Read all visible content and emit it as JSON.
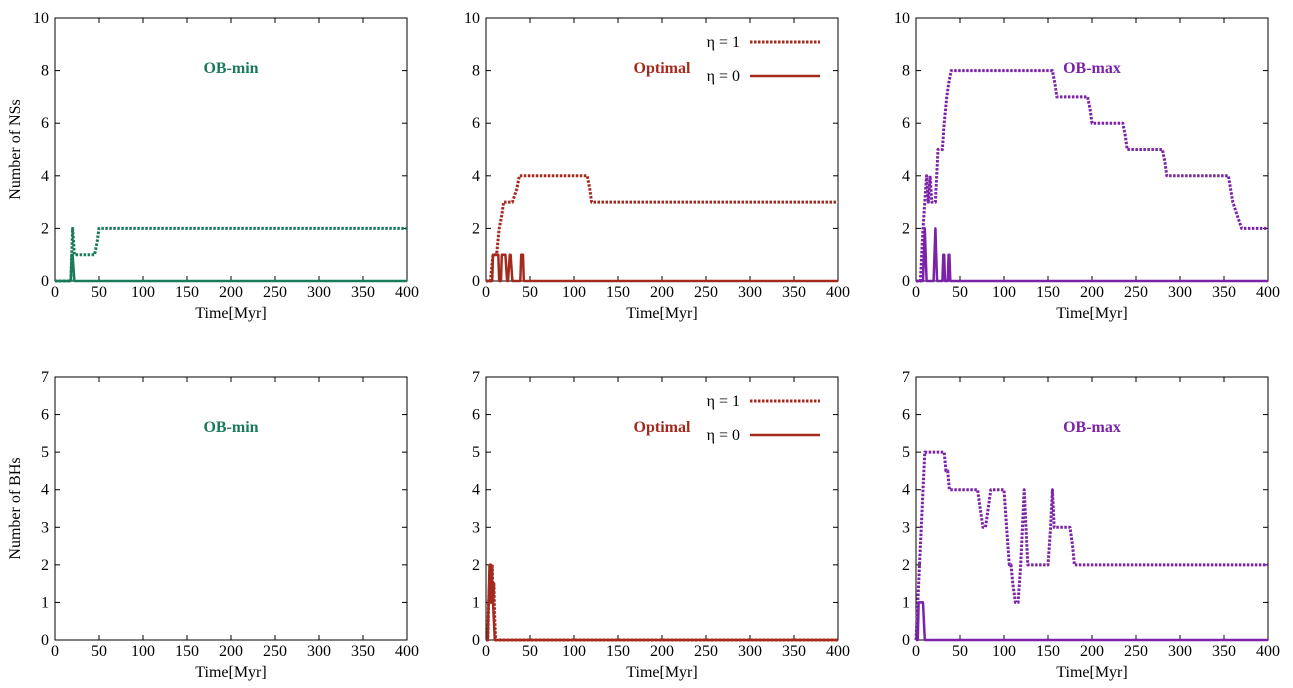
{
  "figure": {
    "xlabel": "Time[Myr]"
  },
  "colors": {
    "OB-min": "#1a7a5c",
    "Optimal": "#a52a1e",
    "OB-max": "#7b22a8"
  },
  "legend": {
    "eta1": "η = 1",
    "eta0": "η = 0"
  },
  "chart_data": [
    {
      "type": "line",
      "row": "NS",
      "title": "OB-min",
      "ylabel": "Number of NSs",
      "xlabel": "Time[Myr]",
      "xlim": [
        0,
        400
      ],
      "ylim": [
        0,
        10
      ],
      "xticks": [
        0,
        50,
        100,
        150,
        200,
        250,
        300,
        350,
        400
      ],
      "yticks": [
        0,
        2,
        4,
        6,
        8,
        10
      ],
      "legend": false,
      "series": [
        {
          "name": "η = 1",
          "style": "dotted",
          "x": [
            0,
            18,
            19,
            20,
            21,
            22,
            24,
            45,
            48,
            50,
            400
          ],
          "y": [
            0,
            0,
            1,
            2,
            1.5,
            1,
            1,
            1,
            1.5,
            2,
            2
          ]
        },
        {
          "name": "η = 0",
          "style": "solid",
          "x": [
            0,
            18,
            19,
            20,
            21,
            22,
            400
          ],
          "y": [
            0,
            0,
            1,
            1,
            0.5,
            0,
            0
          ]
        }
      ]
    },
    {
      "type": "line",
      "row": "NS",
      "title": "Optimal",
      "ylabel": "",
      "xlabel": "Time[Myr]",
      "xlim": [
        0,
        400
      ],
      "ylim": [
        0,
        10
      ],
      "xticks": [
        0,
        50,
        100,
        150,
        200,
        250,
        300,
        350,
        400
      ],
      "yticks": [
        0,
        2,
        4,
        6,
        8,
        10
      ],
      "legend": true,
      "series": [
        {
          "name": "η = 1",
          "style": "dotted",
          "x": [
            0,
            5,
            8,
            12,
            15,
            18,
            20,
            22,
            25,
            30,
            35,
            38,
            40,
            115,
            118,
            120,
            400
          ],
          "y": [
            0,
            0,
            1,
            1,
            2,
            2.5,
            3,
            3,
            3,
            3,
            3.5,
            4,
            4,
            4,
            3.5,
            3,
            3
          ]
        },
        {
          "name": "η = 0",
          "style": "solid",
          "x": [
            0,
            7,
            8,
            10,
            12,
            14,
            15,
            17,
            18,
            20,
            22,
            24,
            25,
            27,
            28,
            30,
            39,
            40,
            42,
            43,
            45,
            55,
            60,
            400
          ],
          "y": [
            0,
            0,
            1,
            1,
            1,
            1,
            0,
            0,
            1,
            1,
            1,
            0,
            0,
            1,
            1,
            0,
            0,
            1,
            1,
            0,
            0,
            0,
            0,
            0
          ]
        }
      ]
    },
    {
      "type": "line",
      "row": "NS",
      "title": "OB-max",
      "ylabel": "",
      "xlabel": "Time[Myr]",
      "xlim": [
        0,
        400
      ],
      "ylim": [
        0,
        10
      ],
      "xticks": [
        0,
        50,
        100,
        150,
        200,
        250,
        300,
        350,
        400
      ],
      "yticks": [
        0,
        2,
        4,
        6,
        8,
        10
      ],
      "legend": false,
      "series": [
        {
          "name": "η = 1",
          "style": "dotted",
          "x": [
            0,
            5,
            8,
            10,
            12,
            14,
            16,
            18,
            20,
            22,
            25,
            28,
            30,
            32,
            35,
            37,
            40,
            45,
            155,
            158,
            160,
            195,
            198,
            200,
            235,
            238,
            240,
            280,
            283,
            285,
            355,
            360,
            365,
            370,
            375,
            380,
            400
          ],
          "y": [
            0,
            0,
            2,
            3,
            4,
            3,
            4,
            3,
            3,
            3,
            5,
            5,
            5,
            6,
            7,
            7.5,
            8,
            8,
            8,
            7.5,
            7,
            7,
            6.5,
            6,
            6,
            5.5,
            5,
            5,
            4.5,
            4,
            4,
            3,
            2.5,
            2,
            2,
            2,
            2
          ]
        },
        {
          "name": "η = 0",
          "style": "solid",
          "x": [
            0,
            8,
            9,
            10,
            11,
            12,
            20,
            21,
            22,
            23,
            24,
            30,
            31,
            32,
            33,
            36,
            37,
            38,
            39,
            40,
            400
          ],
          "y": [
            0,
            0,
            1,
            2,
            1,
            0,
            0,
            1,
            2,
            1,
            0,
            0,
            1,
            1,
            0,
            0,
            1,
            1,
            0,
            0,
            0
          ]
        }
      ]
    },
    {
      "type": "line",
      "row": "BH",
      "title": "OB-min",
      "ylabel": "Number of BHs",
      "xlabel": "Time[Myr]",
      "xlim": [
        0,
        400
      ],
      "ylim": [
        0,
        7
      ],
      "xticks": [
        0,
        50,
        100,
        150,
        200,
        250,
        300,
        350,
        400
      ],
      "yticks": [
        0,
        1,
        2,
        3,
        4,
        5,
        6,
        7
      ],
      "legend": false,
      "series": []
    },
    {
      "type": "line",
      "row": "BH",
      "title": "Optimal",
      "ylabel": "",
      "xlabel": "Time[Myr]",
      "xlim": [
        0,
        400
      ],
      "ylim": [
        0,
        7
      ],
      "xticks": [
        0,
        50,
        100,
        150,
        200,
        250,
        300,
        350,
        400
      ],
      "yticks": [
        0,
        1,
        2,
        3,
        4,
        5,
        6,
        7
      ],
      "legend": true,
      "series": [
        {
          "name": "η = 1",
          "style": "dotted",
          "x": [
            0,
            2,
            3,
            4,
            5,
            6,
            7,
            8,
            9,
            10,
            11,
            12,
            400
          ],
          "y": [
            0,
            0,
            1,
            1.5,
            2,
            1,
            2,
            1,
            1.5,
            0.5,
            0,
            0,
            0
          ]
        },
        {
          "name": "η = 0",
          "style": "solid",
          "x": [
            0,
            2,
            3,
            4,
            5,
            6,
            7,
            8,
            9,
            10,
            400
          ],
          "y": [
            0,
            0,
            1,
            2,
            1,
            2,
            1,
            1,
            0.5,
            0,
            0
          ]
        }
      ]
    },
    {
      "type": "line",
      "row": "BH",
      "title": "OB-max",
      "ylabel": "",
      "xlabel": "Time[Myr]",
      "xlim": [
        0,
        400
      ],
      "ylim": [
        0,
        7
      ],
      "xticks": [
        0,
        50,
        100,
        150,
        200,
        250,
        300,
        350,
        400
      ],
      "yticks": [
        0,
        1,
        2,
        3,
        4,
        5,
        6,
        7
      ],
      "legend": false,
      "series": [
        {
          "name": "η = 1",
          "style": "dotted",
          "x": [
            0,
            2,
            4,
            6,
            8,
            10,
            32,
            34,
            36,
            38,
            70,
            73,
            76,
            79,
            82,
            85,
            88,
            100,
            103,
            106,
            108,
            110,
            113,
            116,
            119,
            121,
            123,
            125,
            127,
            129,
            132,
            150,
            153,
            155,
            157,
            159,
            162,
            175,
            178,
            180,
            400
          ],
          "y": [
            0,
            1,
            2,
            3,
            4,
            5,
            5,
            4.5,
            4.5,
            4,
            4,
            3.5,
            3,
            3,
            3.5,
            4,
            4,
            4,
            3,
            2,
            2,
            1.5,
            1,
            1,
            2,
            3,
            4,
            3,
            2,
            2,
            2,
            2,
            3,
            4,
            3,
            3,
            3,
            3,
            2.5,
            2,
            2
          ]
        },
        {
          "name": "η = 0",
          "style": "solid",
          "x": [
            0,
            2,
            3,
            4,
            5,
            6,
            7,
            8,
            9,
            10,
            400
          ],
          "y": [
            0,
            0,
            1,
            1,
            1,
            1,
            1,
            1,
            0.5,
            0,
            0
          ]
        }
      ]
    }
  ]
}
